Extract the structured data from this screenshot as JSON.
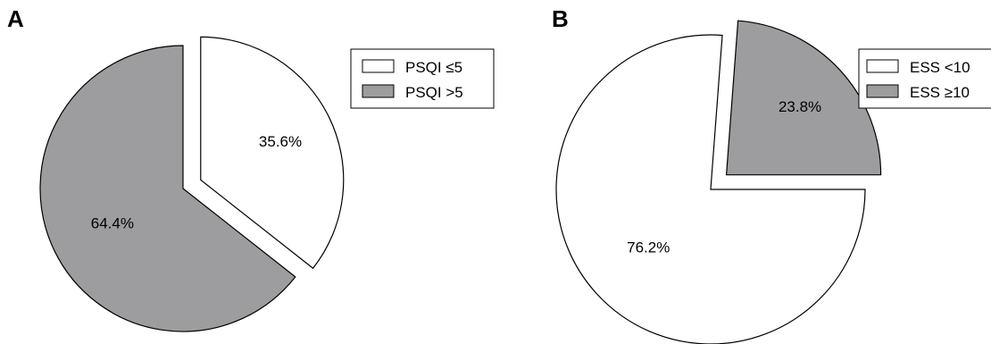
{
  "colors": {
    "white_slice": "#ffffff",
    "gray_slice": "#9d9c9f",
    "outline": "#000000"
  },
  "chart_data": [
    {
      "type": "pie",
      "panel": "A",
      "title": "",
      "categories": [
        "PSQI ≤5",
        "PSQI >5"
      ],
      "values": [
        35.6,
        64.4
      ],
      "labels": [
        "35.6%",
        "64.4%"
      ],
      "colors": [
        "#ffffff",
        "#9d9c9f"
      ],
      "exploded": [
        true,
        false
      ],
      "legend": {
        "position": "top-right",
        "entries": [
          "PSQI ≤5",
          "PSQI >5"
        ]
      }
    },
    {
      "type": "pie",
      "panel": "B",
      "title": "",
      "categories": [
        "ESS <10",
        "ESS ≥10"
      ],
      "values": [
        76.2,
        23.8
      ],
      "labels": [
        "76.2%",
        "23.8%"
      ],
      "colors": [
        "#ffffff",
        "#9d9c9f"
      ],
      "exploded": [
        false,
        true
      ],
      "legend": {
        "position": "top-right",
        "entries": [
          "ESS <10",
          "ESS ≥10"
        ]
      }
    }
  ]
}
